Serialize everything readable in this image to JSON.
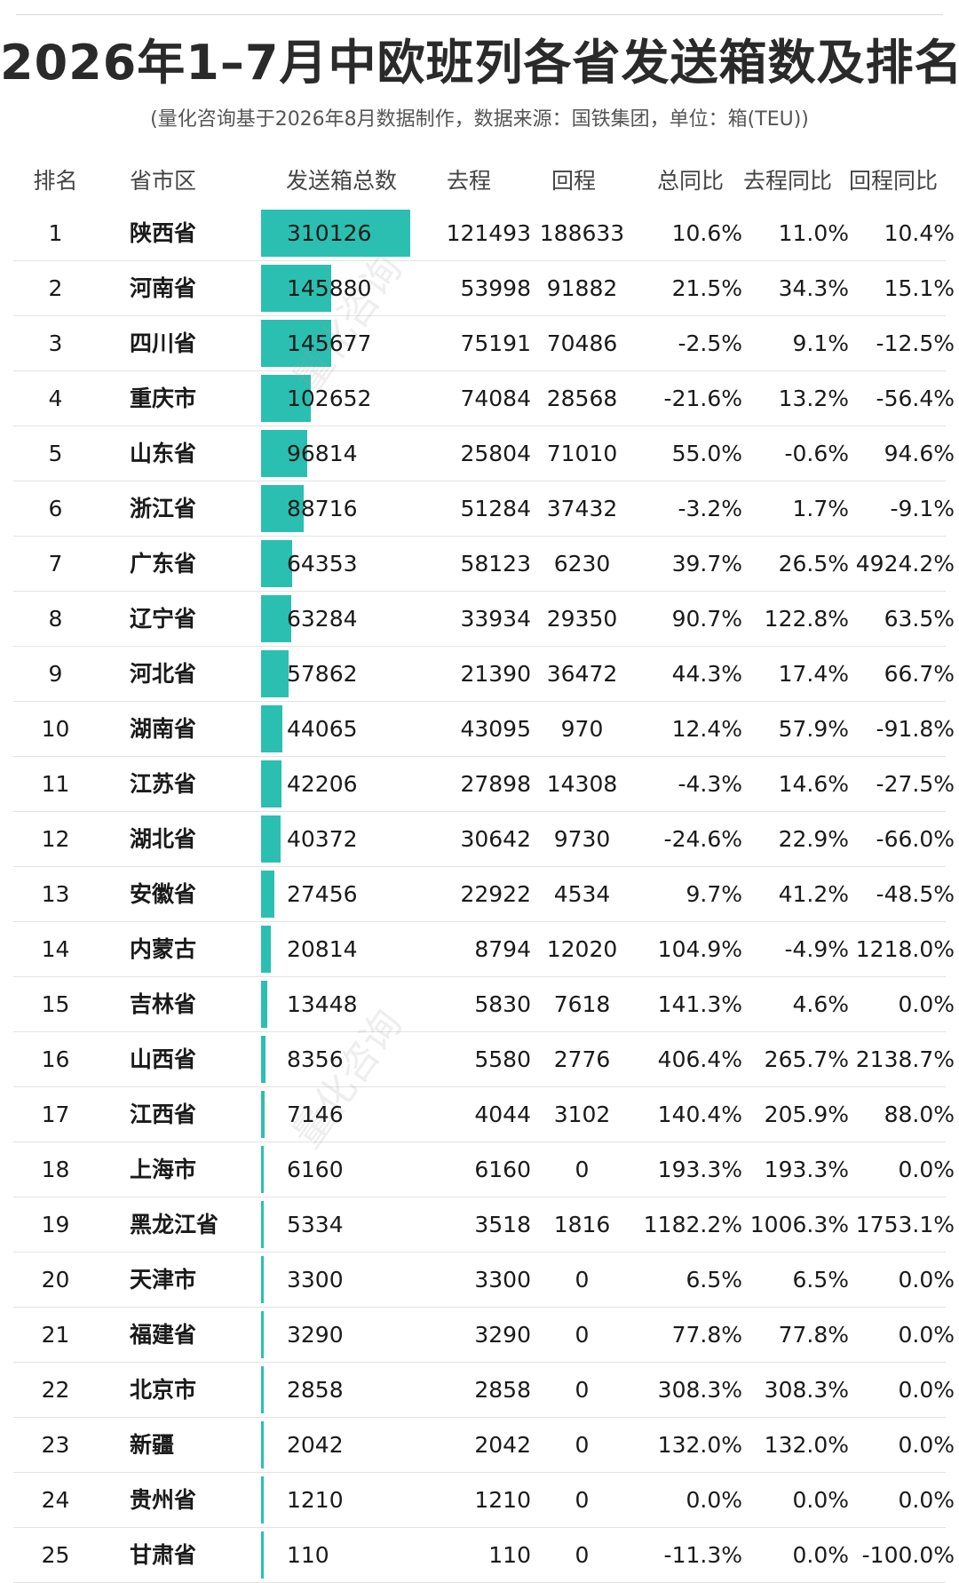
{
  "title": "2026年1–7月中欧班列各省发送箱数及排名",
  "subtitle": "(量化咨询基于2026年8月数据制作，数据来源：国铁集团，单位：箱(TEU))",
  "watermark": "量化咨询",
  "colors": {
    "bar": "#2bbfb1"
  },
  "chart_data": {
    "type": "table",
    "columns": [
      "排名",
      "省市区",
      "发送箱总数",
      "去程",
      "回程",
      "总同比",
      "去程同比",
      "回程同比"
    ],
    "bar_column": "发送箱总数",
    "rows": [
      {
        "rank": "1",
        "province": "陕西省",
        "total": 310126,
        "go": "121493",
        "back": "188633",
        "yoy": "10.6%",
        "go_yoy": "11.0%",
        "back_yoy": "10.4%"
      },
      {
        "rank": "2",
        "province": "河南省",
        "total": 145880,
        "go": "53998",
        "back": "91882",
        "yoy": "21.5%",
        "go_yoy": "34.3%",
        "back_yoy": "15.1%"
      },
      {
        "rank": "3",
        "province": "四川省",
        "total": 145677,
        "go": "75191",
        "back": "70486",
        "yoy": "-2.5%",
        "go_yoy": "9.1%",
        "back_yoy": "-12.5%"
      },
      {
        "rank": "4",
        "province": "重庆市",
        "total": 102652,
        "go": "74084",
        "back": "28568",
        "yoy": "-21.6%",
        "go_yoy": "13.2%",
        "back_yoy": "-56.4%"
      },
      {
        "rank": "5",
        "province": "山东省",
        "total": 96814,
        "go": "25804",
        "back": "71010",
        "yoy": "55.0%",
        "go_yoy": "-0.6%",
        "back_yoy": "94.6%"
      },
      {
        "rank": "6",
        "province": "浙江省",
        "total": 88716,
        "go": "51284",
        "back": "37432",
        "yoy": "-3.2%",
        "go_yoy": "1.7%",
        "back_yoy": "-9.1%"
      },
      {
        "rank": "7",
        "province": "广东省",
        "total": 64353,
        "go": "58123",
        "back": "6230",
        "yoy": "39.7%",
        "go_yoy": "26.5%",
        "back_yoy": "4924.2%"
      },
      {
        "rank": "8",
        "province": "辽宁省",
        "total": 63284,
        "go": "33934",
        "back": "29350",
        "yoy": "90.7%",
        "go_yoy": "122.8%",
        "back_yoy": "63.5%"
      },
      {
        "rank": "9",
        "province": "河北省",
        "total": 57862,
        "go": "21390",
        "back": "36472",
        "yoy": "44.3%",
        "go_yoy": "17.4%",
        "back_yoy": "66.7%"
      },
      {
        "rank": "10",
        "province": "湖南省",
        "total": 44065,
        "go": "43095",
        "back": "970",
        "yoy": "12.4%",
        "go_yoy": "57.9%",
        "back_yoy": "-91.8%"
      },
      {
        "rank": "11",
        "province": "江苏省",
        "total": 42206,
        "go": "27898",
        "back": "14308",
        "yoy": "-4.3%",
        "go_yoy": "14.6%",
        "back_yoy": "-27.5%"
      },
      {
        "rank": "12",
        "province": "湖北省",
        "total": 40372,
        "go": "30642",
        "back": "9730",
        "yoy": "-24.6%",
        "go_yoy": "22.9%",
        "back_yoy": "-66.0%"
      },
      {
        "rank": "13",
        "province": "安徽省",
        "total": 27456,
        "go": "22922",
        "back": "4534",
        "yoy": "9.7%",
        "go_yoy": "41.2%",
        "back_yoy": "-48.5%"
      },
      {
        "rank": "14",
        "province": "内蒙古",
        "total": 20814,
        "go": "8794",
        "back": "12020",
        "yoy": "104.9%",
        "go_yoy": "-4.9%",
        "back_yoy": "1218.0%"
      },
      {
        "rank": "15",
        "province": "吉林省",
        "total": 13448,
        "go": "5830",
        "back": "7618",
        "yoy": "141.3%",
        "go_yoy": "4.6%",
        "back_yoy": "0.0%"
      },
      {
        "rank": "16",
        "province": "山西省",
        "total": 8356,
        "go": "5580",
        "back": "2776",
        "yoy": "406.4%",
        "go_yoy": "265.7%",
        "back_yoy": "2138.7%"
      },
      {
        "rank": "17",
        "province": "江西省",
        "total": 7146,
        "go": "4044",
        "back": "3102",
        "yoy": "140.4%",
        "go_yoy": "205.9%",
        "back_yoy": "88.0%"
      },
      {
        "rank": "18",
        "province": "上海市",
        "total": 6160,
        "go": "6160",
        "back": "0",
        "yoy": "193.3%",
        "go_yoy": "193.3%",
        "back_yoy": "0.0%"
      },
      {
        "rank": "19",
        "province": "黑龙江省",
        "total": 5334,
        "go": "3518",
        "back": "1816",
        "yoy": "1182.2%",
        "go_yoy": "1006.3%",
        "back_yoy": "1753.1%"
      },
      {
        "rank": "20",
        "province": "天津市",
        "total": 3300,
        "go": "3300",
        "back": "0",
        "yoy": "6.5%",
        "go_yoy": "6.5%",
        "back_yoy": "0.0%"
      },
      {
        "rank": "21",
        "province": "福建省",
        "total": 3290,
        "go": "3290",
        "back": "0",
        "yoy": "77.8%",
        "go_yoy": "77.8%",
        "back_yoy": "0.0%"
      },
      {
        "rank": "22",
        "province": "北京市",
        "total": 2858,
        "go": "2858",
        "back": "0",
        "yoy": "308.3%",
        "go_yoy": "308.3%",
        "back_yoy": "0.0%"
      },
      {
        "rank": "23",
        "province": "新疆",
        "total": 2042,
        "go": "2042",
        "back": "0",
        "yoy": "132.0%",
        "go_yoy": "132.0%",
        "back_yoy": "0.0%"
      },
      {
        "rank": "24",
        "province": "贵州省",
        "total": 1210,
        "go": "1210",
        "back": "0",
        "yoy": "0.0%",
        "go_yoy": "0.0%",
        "back_yoy": "0.0%"
      },
      {
        "rank": "25",
        "province": "甘肃省",
        "total": 110,
        "go": "110",
        "back": "0",
        "yoy": "-11.3%",
        "go_yoy": "0.0%",
        "back_yoy": "-100.0%"
      }
    ]
  }
}
